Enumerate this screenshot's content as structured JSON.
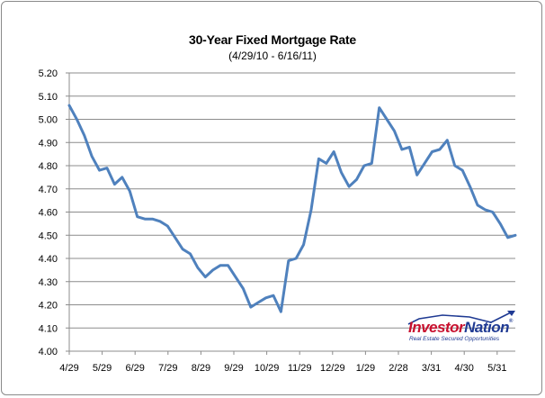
{
  "chart_data": {
    "type": "line",
    "title": "30-Year Fixed Mortgage Rate",
    "subtitle": "(4/29/10 - 6/16/11)",
    "xlabel": "",
    "ylabel": "",
    "x_tick_labels": [
      "4/29",
      "5/29",
      "6/29",
      "7/29",
      "8/29",
      "9/29",
      "10/29",
      "11/29",
      "12/29",
      "1/29",
      "2/28",
      "3/31",
      "4/30",
      "5/31"
    ],
    "y_tick_labels": [
      "4.00",
      "4.10",
      "4.20",
      "4.30",
      "4.40",
      "4.50",
      "4.60",
      "4.70",
      "4.80",
      "4.90",
      "5.00",
      "5.10",
      "5.20"
    ],
    "ylim": [
      4.0,
      5.2
    ],
    "grid": "horizontal",
    "line_color": "#4f81bd",
    "series": [
      {
        "values": [
          5.06,
          5.0,
          4.93,
          4.84,
          4.78,
          4.79,
          4.72,
          4.75,
          4.69,
          4.58,
          4.57,
          4.57,
          4.56,
          4.54,
          4.49,
          4.44,
          4.42,
          4.36,
          4.32,
          4.35,
          4.37,
          4.37,
          4.32,
          4.27,
          4.19,
          4.21,
          4.23,
          4.24,
          4.17,
          4.39,
          4.4,
          4.46,
          4.61,
          4.83,
          4.81,
          4.86,
          4.77,
          4.71,
          4.74,
          4.8,
          4.81,
          5.05,
          5.0,
          4.95,
          4.87,
          4.88,
          4.76,
          4.81,
          4.86,
          4.87,
          4.91,
          4.8,
          4.78,
          4.71,
          4.63,
          4.61,
          4.6,
          4.55,
          4.49,
          4.5
        ]
      }
    ]
  },
  "logo": {
    "name_part1": "Investor",
    "name_part2": "Nation",
    "registered": "®",
    "tagline": "Real Estate Secured Opportunities"
  }
}
